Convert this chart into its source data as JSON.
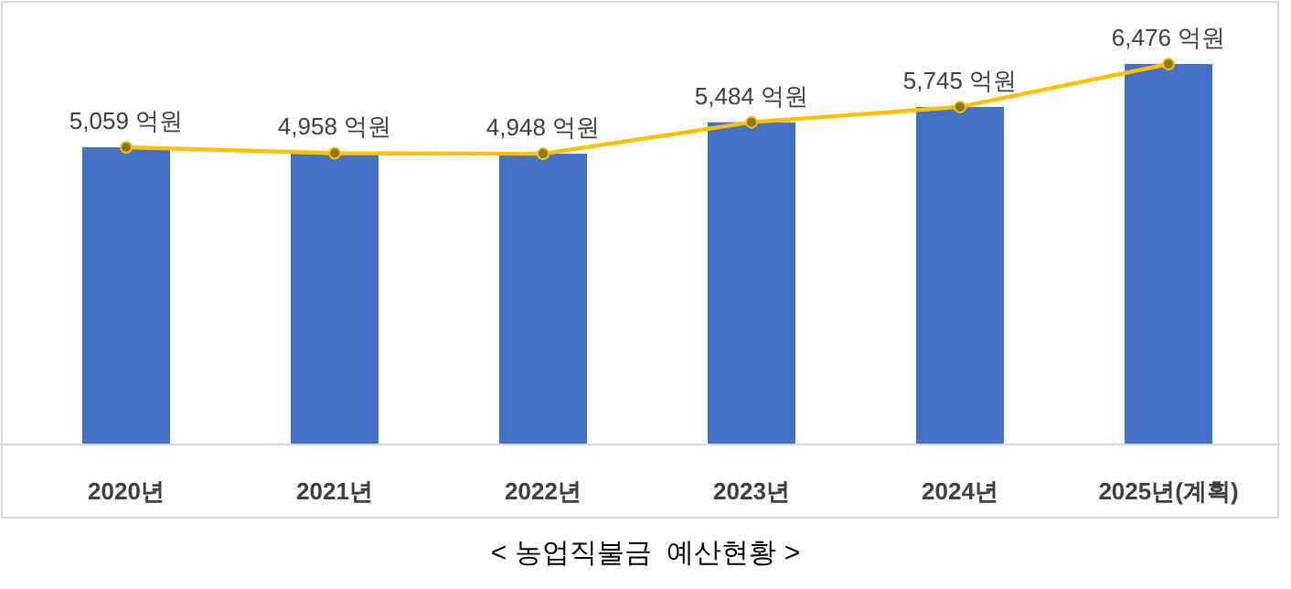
{
  "chart_data": {
    "type": "bar",
    "title": "< 농업직불금  예산현황 >",
    "categories": [
      "2020년",
      "2021년",
      "2022년",
      "2023년",
      "2024년",
      "2025년(계획)"
    ],
    "grid": false,
    "tick_labels": "x",
    "series": [
      {
        "color": "#4472c4",
        "values": [
          5059,
          4958,
          4948,
          5484,
          5745,
          6476
        ]
      },
      {
        "type": "line",
        "color": "#ffc000",
        "marker": "circle",
        "line_style": "solid",
        "values": [
          5059,
          4958,
          4948,
          5484,
          5745,
          6476
        ],
        "value_labels": [
          "5,059 억원",
          "4,958 억원",
          "4,948 억원",
          "5,484 억원",
          "5,745 억원",
          "6,476 억원"
        ]
      }
    ]
  }
}
